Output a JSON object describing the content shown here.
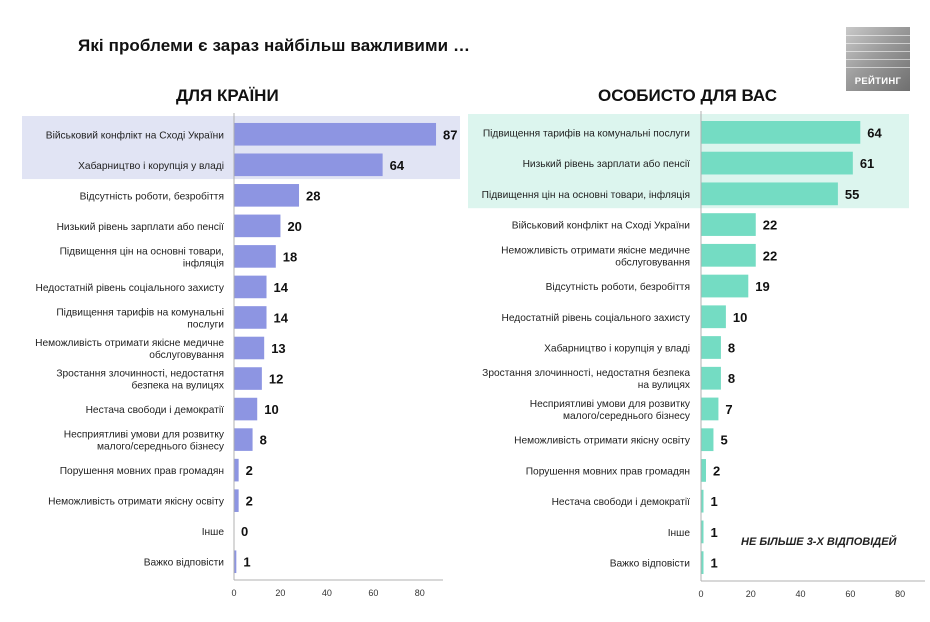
{
  "title": "Які проблеми є зараз найбільш важливими …",
  "logo": {
    "text": "РЕЙТИНГ",
    "colors": {
      "light": "#c9c9c9",
      "dark": "#6f6f6f"
    }
  },
  "note": "НЕ БІЛЬШЕ 3-Х ВІДПОВІДЕЙ",
  "colors": {
    "left_bar": "#8d95e2",
    "left_highlight": "#e1e4f4",
    "right_bar": "#74dcc3",
    "right_highlight": "#dcf5ee",
    "axis": "#b0b0b0"
  },
  "chart_data": [
    {
      "type": "bar",
      "orientation": "horizontal",
      "title": "ДЛЯ КРАЇНИ",
      "xlim": [
        0,
        90
      ],
      "x_ticks": [
        "0",
        "20",
        "40",
        "60",
        "80"
      ],
      "categories": [
        [
          "Військовий конфлікт на Сході України"
        ],
        [
          "Хабарництво і корупція у владі"
        ],
        [
          "Відсутність роботи, безробіття"
        ],
        [
          "Низький рівень зарплати або пенсії"
        ],
        [
          "Підвищення цін на основні товари,",
          "інфляція"
        ],
        [
          "Недостатній рівень соціального захисту"
        ],
        [
          "Підвищення тарифів на комунальні",
          "послуги"
        ],
        [
          "Неможливість отримати якісне медичне",
          "обслуговування"
        ],
        [
          "Зростання злочинності, недостатня",
          "безпека на вулицях"
        ],
        [
          "Нестача свободи і демократії"
        ],
        [
          "Несприятливі умови для розвитку",
          "малого/середнього бізнесу"
        ],
        [
          "Порушення мовних прав громадян"
        ],
        [
          "Неможливість отримати якісну освіту"
        ],
        [
          "Інше"
        ],
        [
          "Важко відповісти"
        ]
      ],
      "values": [
        87,
        64,
        28,
        20,
        18,
        14,
        14,
        13,
        12,
        10,
        8,
        2,
        2,
        0,
        1
      ],
      "highlighted_count": 2
    },
    {
      "type": "bar",
      "orientation": "horizontal",
      "title": "ОСОБИСТО ДЛЯ ВАС",
      "xlim": [
        0,
        90
      ],
      "x_ticks": [
        "0",
        "20",
        "40",
        "60",
        "80"
      ],
      "categories": [
        [
          "Підвищення тарифів на комунальні послуги"
        ],
        [
          "Низький рівень зарплати або пенсії"
        ],
        [
          "Підвищення цін на основні товари, інфляція"
        ],
        [
          "Військовий конфлікт на Сході України"
        ],
        [
          "Неможливість отримати якісне медичне",
          "обслуговування"
        ],
        [
          "Відсутність роботи, безробіття"
        ],
        [
          "Недостатній рівень соціального захисту"
        ],
        [
          "Хабарництво і корупція у владі"
        ],
        [
          "Зростання злочинності, недостатня безпека",
          "на вулицях"
        ],
        [
          "Несприятливі умови для розвитку",
          "малого/середнього бізнесу"
        ],
        [
          "Неможливість отримати якісну освіту"
        ],
        [
          "Порушення мовних прав громадян"
        ],
        [
          "Нестача свободи і демократії"
        ],
        [
          "Інше"
        ],
        [
          "Важко відповісти"
        ]
      ],
      "values": [
        64,
        61,
        55,
        22,
        22,
        19,
        10,
        8,
        8,
        7,
        5,
        2,
        1,
        1,
        1
      ],
      "highlighted_count": 3
    }
  ]
}
